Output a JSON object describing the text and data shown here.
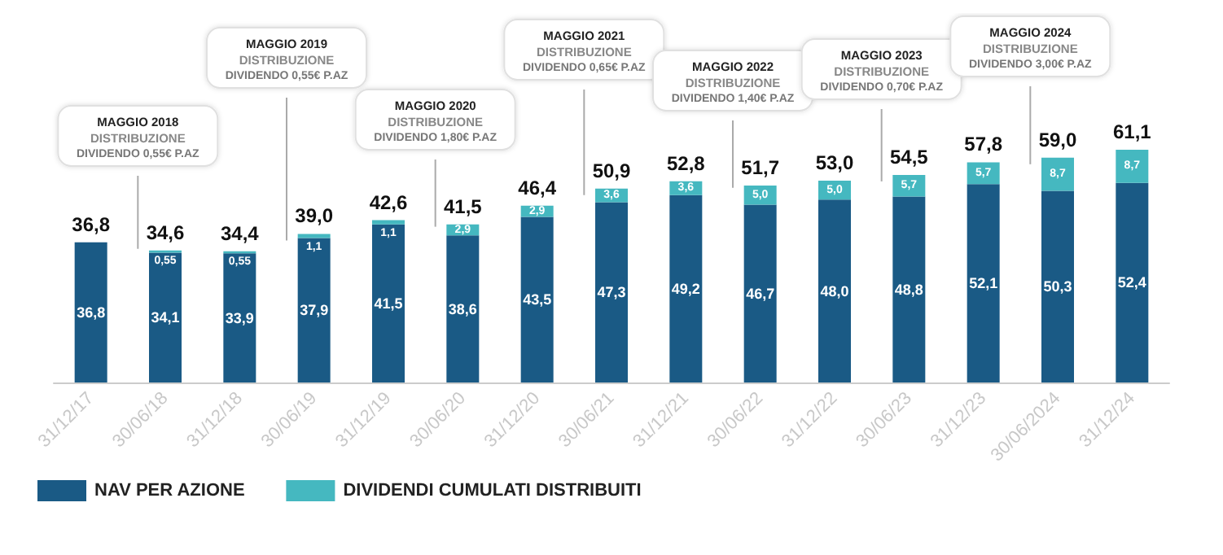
{
  "chart_data": {
    "type": "bar",
    "stacked": true,
    "legend": "bottom left",
    "categories": [
      "31/12/17",
      "30/06/18",
      "31/12/18",
      "30/06/19",
      "31/12/19",
      "30/06/20",
      "31/12/20",
      "30/06/21",
      "31/12/21",
      "30/06/22",
      "31/12/22",
      "30/06/23",
      "31/12/23",
      "30/06/2024",
      "31/12/24"
    ],
    "series": [
      {
        "name": "NAV PER AZIONE",
        "color": "#1a5a85",
        "values": [
          36.8,
          34.1,
          33.9,
          37.9,
          41.5,
          38.6,
          43.5,
          47.3,
          49.2,
          46.7,
          48.0,
          48.8,
          52.1,
          50.3,
          52.4
        ],
        "value_labels": [
          "36,8",
          "34,1",
          "33,9",
          "37,9",
          "41,5",
          "38,6",
          "43,5",
          "47,3",
          "49,2",
          "46,7",
          "48,0",
          "48,8",
          "52,1",
          "50,3",
          "52,4"
        ]
      },
      {
        "name": "DIVIDENDI CUMULATI DISTRIBUITI",
        "color": "#45b8c0",
        "values": [
          null,
          0.55,
          0.55,
          1.1,
          1.1,
          2.9,
          2.9,
          3.6,
          3.6,
          5.0,
          5.0,
          5.7,
          5.7,
          8.7,
          8.7
        ],
        "value_labels": [
          null,
          "0,55",
          "0,55",
          "1,1",
          "1,1",
          "2,9",
          "2,9",
          "3,6",
          "3,6",
          "5,0",
          "5,0",
          "5,7",
          "5,7",
          "8,7",
          "8,7"
        ]
      }
    ],
    "totals": [
      "36,8",
      "34,6",
      "34,4",
      "39,0",
      "42,6",
      "41,5",
      "46,4",
      "50,9",
      "52,8",
      "51,7",
      "53,0",
      "54,5",
      "57,8",
      "59,0",
      "61,1"
    ],
    "annotations": [
      "MAGGIO 2018\nDISTRIBUZIONE\nDIVIDENDO 0,55€ P.AZ",
      "MAGGIO 2019\nDISTRIBUZIONE\nDIVIDENDO 0,55€ P.AZ",
      "MAGGIO 2020\nDISTRIBUZIONE\nDIVIDENDO 1,80€ P.AZ",
      "MAGGIO 2021\nDISTRIBUZIONE\nDIVIDENDO 0,65€ P.AZ",
      "MAGGIO 2022\nDISTRIBUZIONE\nDIVIDENDO 1,40€ P.AZ",
      "MAGGIO 2023\nDISTRIBUZIONE\nDIVIDENDO 0,70€ P.AZ",
      "MAGGIO 2024\nDISTRIBUZIONE\nDIVIDENDO 3,00€ P.AZ"
    ],
    "grid": false
  }
}
